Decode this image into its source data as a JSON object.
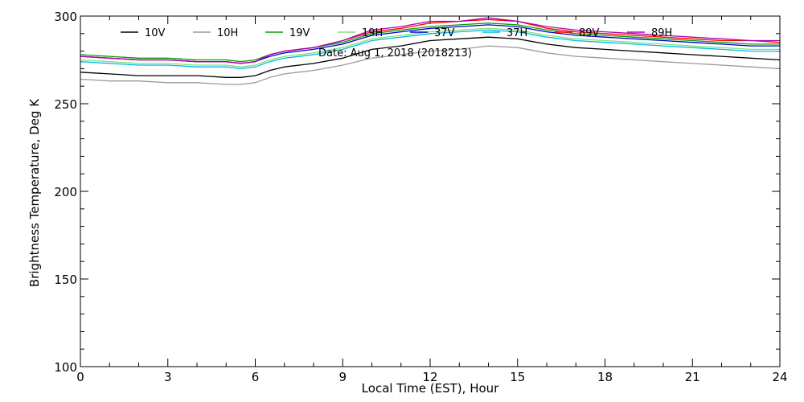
{
  "chart_data": {
    "type": "line",
    "title": "",
    "annotation": "Date: Aug  1, 2018 (2018213)",
    "xlabel": "Local Time (EST), Hour",
    "ylabel": "Brightness Temperature, Deg  K",
    "xlim": [
      0,
      24
    ],
    "ylim": [
      100,
      300
    ],
    "xticks": [
      0,
      3,
      6,
      9,
      12,
      15,
      18,
      21,
      24
    ],
    "yticks": [
      100,
      150,
      200,
      250,
      300
    ],
    "x": [
      0,
      1,
      2,
      3,
      4,
      5,
      5.5,
      6,
      6.5,
      7,
      8,
      9,
      10,
      11,
      12,
      13,
      14,
      15,
      16,
      17,
      18,
      19,
      20,
      21,
      22,
      23,
      24
    ],
    "series": [
      {
        "name": "10V",
        "color": "#000000",
        "values": [
          268,
          267,
          266,
          266,
          266,
          265,
          265,
          266,
          269,
          271,
          273,
          276,
          281,
          283,
          286,
          287,
          288,
          287,
          284,
          282,
          281,
          280,
          279,
          278,
          277,
          276,
          275
        ]
      },
      {
        "name": "10H",
        "color": "#9a9a9a",
        "values": [
          264,
          263,
          263,
          262,
          262,
          261,
          261,
          262,
          265,
          267,
          269,
          272,
          276,
          278,
          280,
          281,
          283,
          282,
          279,
          277,
          276,
          275,
          274,
          273,
          272,
          271,
          270
        ]
      },
      {
        "name": "19V",
        "color": "#00a000",
        "values": [
          278,
          277,
          276,
          276,
          275,
          275,
          274,
          275,
          278,
          280,
          282,
          285,
          290,
          292,
          294,
          295,
          296,
          295,
          292,
          290,
          289,
          288,
          287,
          286,
          285,
          284,
          284
        ]
      },
      {
        "name": "19H",
        "color": "#80e080",
        "values": [
          275,
          274,
          273,
          273,
          272,
          272,
          271,
          272,
          275,
          277,
          279,
          282,
          287,
          289,
          291,
          292,
          293,
          292,
          289,
          287,
          286,
          285,
          284,
          283,
          282,
          281,
          281
        ]
      },
      {
        "name": "37V",
        "color": "#0000cc",
        "values": [
          277,
          276,
          275,
          275,
          274,
          274,
          273,
          274,
          277,
          279,
          281,
          284,
          289,
          291,
          293,
          294,
          295,
          294,
          291,
          289,
          288,
          287,
          286,
          285,
          284,
          283,
          283
        ]
      },
      {
        "name": "37H",
        "color": "#00b8e6",
        "values": [
          274,
          273,
          272,
          272,
          271,
          271,
          270,
          271,
          274,
          276,
          278,
          281,
          286,
          288,
          290,
          291,
          292,
          291,
          288,
          286,
          285,
          284,
          283,
          282,
          281,
          280,
          280
        ]
      },
      {
        "name": "89V",
        "color": "#ff0000",
        "values": [
          277,
          276,
          275,
          275,
          274,
          274,
          273,
          274,
          278,
          280,
          282,
          286,
          291,
          293,
          296,
          297,
          298,
          297,
          293,
          291,
          290,
          289,
          288,
          287,
          286,
          286,
          285
        ]
      },
      {
        "name": "89H",
        "color": "#b000b0",
        "values": [
          277,
          276,
          275,
          275,
          274,
          274,
          273,
          274,
          278,
          280,
          282,
          286,
          292,
          294,
          297,
          297,
          299,
          297,
          294,
          292,
          291,
          290,
          289,
          288,
          287,
          286,
          286
        ]
      }
    ]
  }
}
